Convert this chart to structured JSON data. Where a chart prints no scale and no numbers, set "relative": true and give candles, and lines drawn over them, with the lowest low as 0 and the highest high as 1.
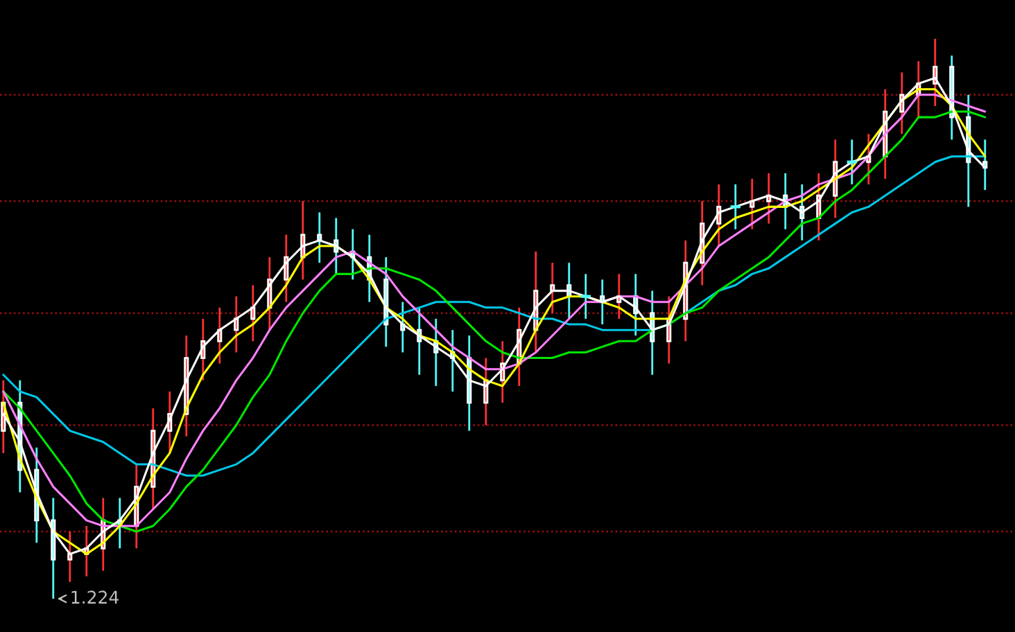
{
  "chart_data": {
    "type": "candlestick",
    "relative": true,
    "categories": [
      null,
      null,
      null,
      null,
      null,
      null,
      null,
      null,
      null,
      null,
      null,
      null,
      null,
      null,
      null,
      null,
      null,
      null,
      null,
      null,
      null,
      null,
      null,
      null,
      null,
      null,
      null,
      null,
      null,
      null,
      null,
      null,
      null,
      null,
      null,
      null,
      null,
      null,
      null,
      null,
      null,
      null,
      null,
      null,
      null,
      null,
      null,
      null,
      null,
      null,
      null,
      null,
      null,
      null,
      null,
      null,
      null,
      null,
      null,
      null
    ],
    "ohlc": [
      [
        0.3,
        0.39,
        0.26,
        0.35
      ],
      [
        0.35,
        0.39,
        0.19,
        0.23
      ],
      [
        0.23,
        0.27,
        0.1,
        0.14
      ],
      [
        0.14,
        0.18,
        0,
        0.07
      ],
      [
        0.07,
        0.12,
        0.03,
        0.08
      ],
      [
        0.08,
        0.13,
        0.04,
        0.09
      ],
      [
        0.09,
        0.18,
        0.05,
        0.14
      ],
      [
        0.14,
        0.18,
        0.09,
        0.13
      ],
      [
        0.13,
        0.24,
        0.09,
        0.2
      ],
      [
        0.2,
        0.34,
        0.16,
        0.3
      ],
      [
        0.3,
        0.37,
        0.26,
        0.33
      ],
      [
        0.33,
        0.47,
        0.29,
        0.43
      ],
      [
        0.43,
        0.5,
        0.39,
        0.46
      ],
      [
        0.46,
        0.52,
        0.42,
        0.48
      ],
      [
        0.48,
        0.54,
        0.44,
        0.5
      ],
      [
        0.5,
        0.56,
        0.46,
        0.52
      ],
      [
        0.52,
        0.61,
        0.48,
        0.57
      ],
      [
        0.57,
        0.65,
        0.53,
        0.61
      ],
      [
        0.61,
        0.71,
        0.57,
        0.65
      ],
      [
        0.65,
        0.69,
        0.6,
        0.64
      ],
      [
        0.64,
        0.68,
        0.58,
        0.62
      ],
      [
        0.62,
        0.66,
        0.57,
        0.61
      ],
      [
        0.61,
        0.65,
        0.53,
        0.57
      ],
      [
        0.57,
        0.61,
        0.45,
        0.49
      ],
      [
        0.49,
        0.53,
        0.44,
        0.48
      ],
      [
        0.48,
        0.52,
        0.4,
        0.46
      ],
      [
        0.46,
        0.5,
        0.38,
        0.44
      ],
      [
        0.44,
        0.48,
        0.37,
        0.43
      ],
      [
        0.43,
        0.47,
        0.3,
        0.35
      ],
      [
        0.35,
        0.43,
        0.31,
        0.39
      ],
      [
        0.39,
        0.46,
        0.35,
        0.42
      ],
      [
        0.42,
        0.52,
        0.38,
        0.48
      ],
      [
        0.48,
        0.62,
        0.44,
        0.55
      ],
      [
        0.55,
        0.6,
        0.51,
        0.56
      ],
      [
        0.56,
        0.6,
        0.5,
        0.54
      ],
      [
        0.54,
        0.58,
        0.5,
        0.54
      ],
      [
        0.54,
        0.57,
        0.49,
        0.53
      ],
      [
        0.53,
        0.58,
        0.5,
        0.54
      ],
      [
        0.54,
        0.58,
        0.47,
        0.51
      ],
      [
        0.51,
        0.55,
        0.4,
        0.46
      ],
      [
        0.46,
        0.54,
        0.42,
        0.5
      ],
      [
        0.5,
        0.64,
        0.46,
        0.6
      ],
      [
        0.6,
        0.71,
        0.56,
        0.67
      ],
      [
        0.67,
        0.74,
        0.63,
        0.7
      ],
      [
        0.7,
        0.74,
        0.66,
        0.7
      ],
      [
        0.7,
        0.75,
        0.66,
        0.71
      ],
      [
        0.71,
        0.76,
        0.67,
        0.72
      ],
      [
        0.72,
        0.76,
        0.66,
        0.7
      ],
      [
        0.7,
        0.74,
        0.64,
        0.68
      ],
      [
        0.68,
        0.76,
        0.64,
        0.72
      ],
      [
        0.72,
        0.82,
        0.68,
        0.78
      ],
      [
        0.78,
        0.82,
        0.74,
        0.78
      ],
      [
        0.78,
        0.83,
        0.74,
        0.79
      ],
      [
        0.79,
        0.91,
        0.75,
        0.87
      ],
      [
        0.87,
        0.94,
        0.83,
        0.9
      ],
      [
        0.9,
        0.96,
        0.86,
        0.92
      ],
      [
        0.92,
        1,
        0.88,
        0.95
      ],
      [
        0.95,
        0.97,
        0.82,
        0.86
      ],
      [
        0.86,
        0.9,
        0.7,
        0.78
      ],
      [
        0.78,
        0.82,
        0.73,
        0.77
      ]
    ],
    "colors": [
      "#ff3232",
      "#54ffff",
      "#54ffff",
      "#54ffff",
      "#ff3232",
      "#ff3232",
      "#ff3232",
      "#54ffff",
      "#ff3232",
      "#ff3232",
      "#ff3232",
      "#ff3232",
      "#ff3232",
      "#ff3232",
      "#ff3232",
      "#ff3232",
      "#ff3232",
      "#ff3232",
      "#ff3232",
      "#54ffff",
      "#54ffff",
      "#54ffff",
      "#54ffff",
      "#54ffff",
      "#54ffff",
      "#54ffff",
      "#54ffff",
      "#54ffff",
      "#54ffff",
      "#ff3232",
      "#ff3232",
      "#ff3232",
      "#ff3232",
      "#ff3232",
      "#54ffff",
      "#54ffff",
      "#54ffff",
      "#ff3232",
      "#54ffff",
      "#54ffff",
      "#ff3232",
      "#ff3232",
      "#ff3232",
      "#ff3232",
      "#54ffff",
      "#ff3232",
      "#ff3232",
      "#54ffff",
      "#54ffff",
      "#ff3232",
      "#ff3232",
      "#54ffff",
      "#ff3232",
      "#ff3232",
      "#ff3232",
      "#ff3232",
      "#ff3232",
      "#54ffff",
      "#54ffff",
      "#54ffff"
    ],
    "series": [
      {
        "type": "line",
        "color": "#00c8e8",
        "values": [
          0.4,
          0.37,
          0.36,
          0.33,
          0.3,
          0.29,
          0.28,
          0.26,
          0.24,
          0.24,
          0.23,
          0.22,
          0.22,
          0.23,
          0.24,
          0.26,
          0.29,
          0.32,
          0.35,
          0.38,
          0.41,
          0.44,
          0.47,
          0.5,
          0.51,
          0.52,
          0.53,
          0.53,
          0.53,
          0.52,
          0.52,
          0.51,
          0.5,
          0.5,
          0.49,
          0.49,
          0.48,
          0.48,
          0.48,
          0.48,
          0.49,
          0.51,
          0.53,
          0.55,
          0.56,
          0.58,
          0.59,
          0.61,
          0.63,
          0.65,
          0.67,
          0.69,
          0.7,
          0.72,
          0.74,
          0.76,
          0.78,
          0.79,
          0.79,
          0.79
        ]
      },
      {
        "type": "line",
        "color": "#00e600",
        "values": [
          0.37,
          0.34,
          0.3,
          0.26,
          0.22,
          0.17,
          0.14,
          0.13,
          0.12,
          0.13,
          0.16,
          0.2,
          0.23,
          0.27,
          0.31,
          0.36,
          0.4,
          0.46,
          0.51,
          0.55,
          0.58,
          0.58,
          0.59,
          0.59,
          0.58,
          0.57,
          0.55,
          0.52,
          0.49,
          0.46,
          0.44,
          0.43,
          0.43,
          0.43,
          0.44,
          0.44,
          0.45,
          0.46,
          0.46,
          0.48,
          0.49,
          0.51,
          0.52,
          0.55,
          0.57,
          0.59,
          0.61,
          0.64,
          0.67,
          0.68,
          0.71,
          0.73,
          0.76,
          0.79,
          0.82,
          0.86,
          0.86,
          0.87,
          0.87,
          0.86
        ]
      },
      {
        "type": "line",
        "color": "#ff80ff",
        "values": [
          0.37,
          0.31,
          0.25,
          0.2,
          0.17,
          0.14,
          0.13,
          0.13,
          0.13,
          0.16,
          0.19,
          0.25,
          0.3,
          0.34,
          0.39,
          0.43,
          0.48,
          0.52,
          0.55,
          0.58,
          0.61,
          0.62,
          0.6,
          0.58,
          0.54,
          0.51,
          0.48,
          0.45,
          0.43,
          0.41,
          0.41,
          0.42,
          0.44,
          0.47,
          0.5,
          0.53,
          0.53,
          0.54,
          0.54,
          0.53,
          0.53,
          0.56,
          0.59,
          0.63,
          0.65,
          0.67,
          0.69,
          0.71,
          0.72,
          0.74,
          0.75,
          0.76,
          0.79,
          0.83,
          0.86,
          0.9,
          0.9,
          0.89,
          0.88,
          0.87
        ]
      },
      {
        "type": "line",
        "color": "#ffff00",
        "values": [
          0.35,
          0.25,
          0.18,
          0.12,
          0.1,
          0.08,
          0.1,
          0.13,
          0.17,
          0.22,
          0.26,
          0.34,
          0.4,
          0.44,
          0.47,
          0.49,
          0.52,
          0.56,
          0.61,
          0.63,
          0.63,
          0.61,
          0.57,
          0.52,
          0.5,
          0.47,
          0.46,
          0.44,
          0.41,
          0.39,
          0.38,
          0.42,
          0.48,
          0.53,
          0.54,
          0.54,
          0.53,
          0.52,
          0.5,
          0.5,
          0.5,
          0.57,
          0.62,
          0.66,
          0.68,
          0.69,
          0.7,
          0.7,
          0.71,
          0.73,
          0.75,
          0.77,
          0.81,
          0.85,
          0.89,
          0.91,
          0.91,
          0.88,
          0.83,
          0.79
        ]
      },
      {
        "type": "line",
        "color": "#ffffff",
        "values": [
          0.33,
          0.28,
          0.19,
          0.12,
          0.08,
          0.09,
          0.12,
          0.14,
          0.18,
          0.26,
          0.32,
          0.39,
          0.45,
          0.48,
          0.5,
          0.52,
          0.56,
          0.6,
          0.63,
          0.64,
          0.63,
          0.61,
          0.58,
          0.52,
          0.49,
          0.47,
          0.45,
          0.43,
          0.39,
          0.38,
          0.41,
          0.46,
          0.52,
          0.55,
          0.55,
          0.54,
          0.53,
          0.54,
          0.52,
          0.48,
          0.49,
          0.56,
          0.64,
          0.69,
          0.7,
          0.71,
          0.72,
          0.71,
          0.69,
          0.71,
          0.76,
          0.78,
          0.79,
          0.85,
          0.89,
          0.92,
          0.93,
          0.88,
          0.8,
          0.77
        ]
      }
    ],
    "ref_lines": [
      {
        "axis": "y",
        "value": 0.9,
        "color": "#a01010",
        "line_style": "dotted"
      },
      {
        "axis": "y",
        "value": 0.71,
        "color": "#a01010",
        "line_style": "dotted"
      },
      {
        "axis": "y",
        "value": 0.51,
        "color": "#a01010",
        "line_style": "dotted"
      },
      {
        "axis": "y",
        "value": 0.31,
        "color": "#a01010",
        "line_style": "dotted"
      },
      {
        "axis": "y",
        "value": 0.12,
        "color": "#a01010",
        "line_style": "dotted"
      }
    ],
    "annotations": [
      "1.224"
    ]
  }
}
